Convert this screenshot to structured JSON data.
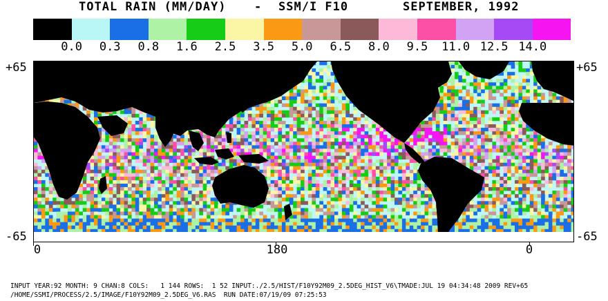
{
  "header": {
    "title_left": "TOTAL RAIN (MM/DAY)",
    "separator": "-",
    "instrument": "SSM/I F10",
    "period": "SEPTEMBER, 1992"
  },
  "legend": {
    "colors": [
      "#000000",
      "#b9f6f6",
      "#1a6ee6",
      "#aef2a6",
      "#17cc17",
      "#fbf5a6",
      "#fa9a14",
      "#c89898",
      "#8a5a5a",
      "#fdbad8",
      "#fb50a6",
      "#d2a2f4",
      "#a64af6",
      "#f614f0"
    ],
    "labels": [
      "0.0",
      "0.3",
      "0.8",
      "1.6",
      "2.5",
      "3.5",
      "5.0",
      "6.5",
      "8.0",
      "9.5",
      "11.0",
      "12.5",
      "14.0"
    ]
  },
  "map": {
    "lat_top": "+65",
    "lat_bottom": "-65",
    "lon_labels": [
      "0",
      "180",
      "0"
    ],
    "ocean_color": "#bff7f9",
    "land_color": "#000000"
  },
  "footer": {
    "line1": "INPUT YEAR:92 MONTH: 9 CHAN:8 COLS:   1 144 ROWS:  1 52 INPUT:./2.5/HIST/F10Y92M09_2.5DEG_HIST_V6\\TMADE:JUL 19 04:34:48 2009 REV+65",
    "line2": "/HOME/SSMI/PROCESS/2.5/IMAGE/F10Y92M09_2.5DEG_V6.RAS  RUN DATE:07/19/09 07:25:53"
  }
}
